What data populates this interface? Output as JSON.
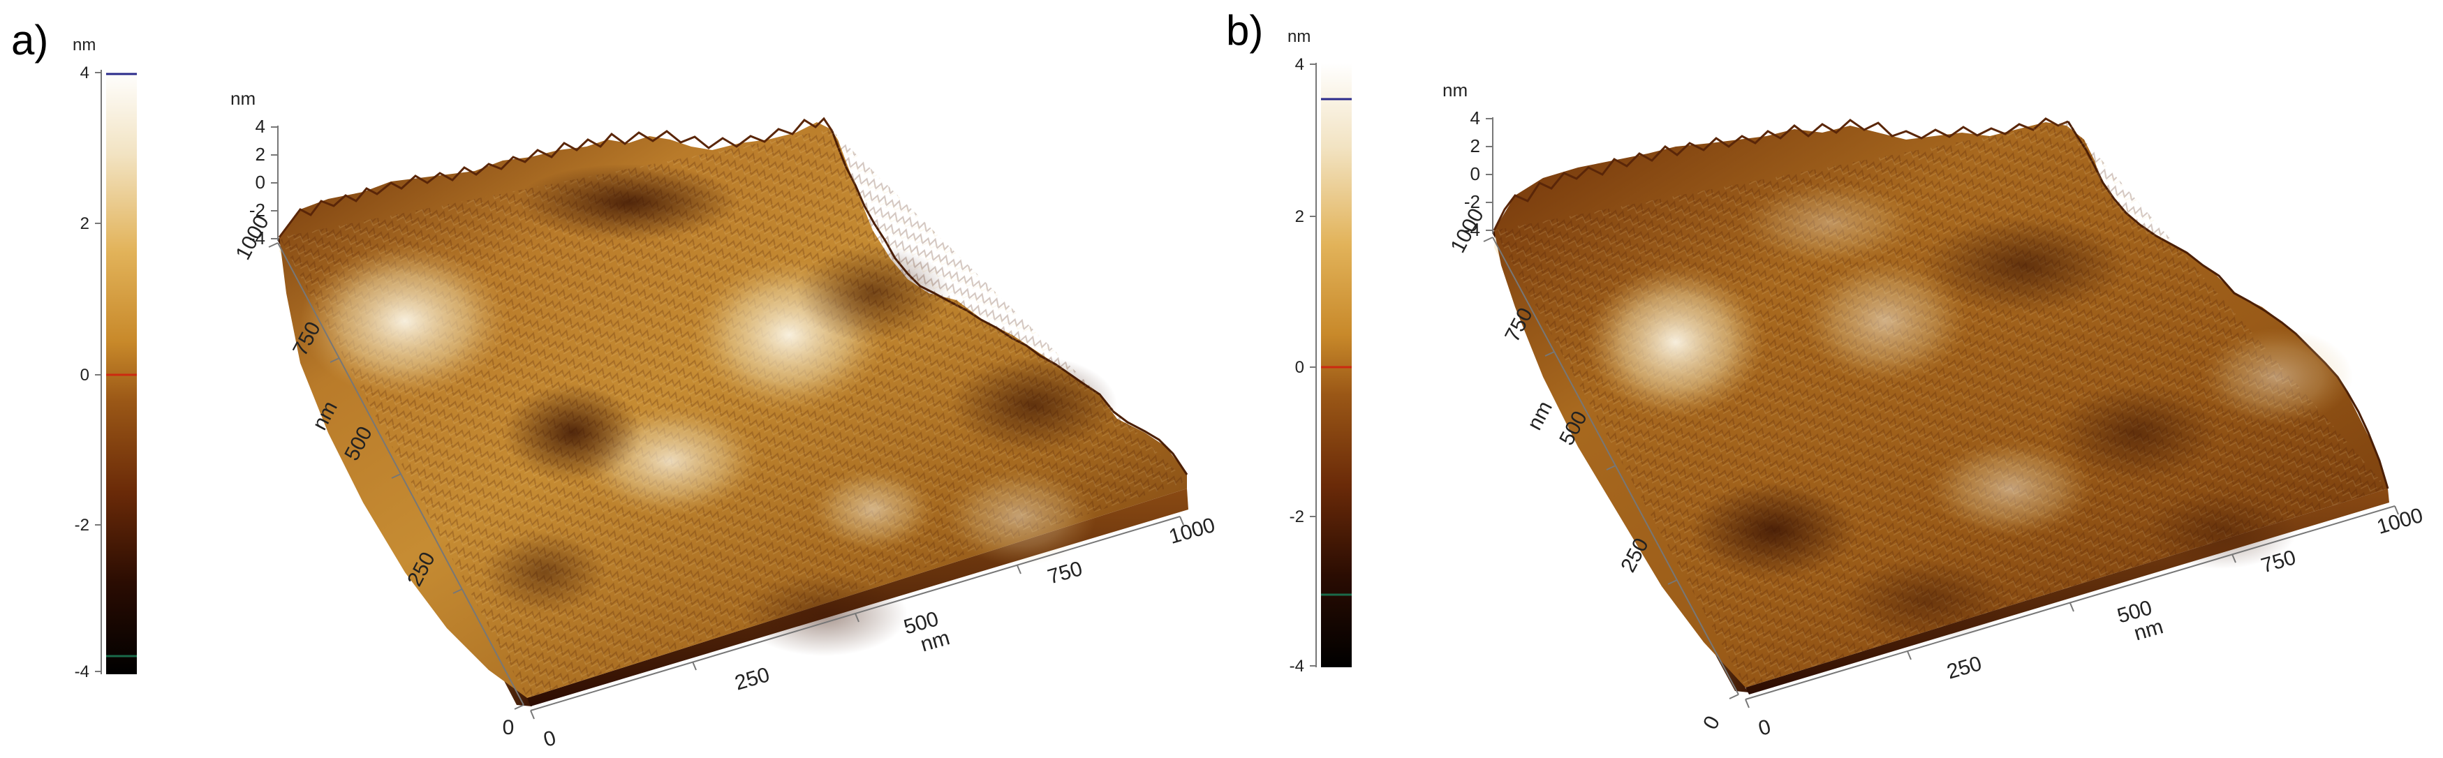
{
  "panels": [
    {
      "id": "a",
      "letter": "a)",
      "colorbar": {
        "unit": "nm",
        "ticks": [
          "4",
          "2",
          "0",
          "-2",
          "-4"
        ]
      },
      "z_axis": {
        "unit": "nm",
        "ticks": [
          "4",
          "2",
          "0",
          "-2",
          "-4"
        ]
      },
      "y_axis": {
        "unit": "nm",
        "ticks": [
          "0",
          "250",
          "500",
          "750",
          "1000"
        ]
      },
      "x_axis": {
        "unit": "nm",
        "ticks": [
          "0",
          "250",
          "500",
          "750",
          "1000"
        ]
      }
    },
    {
      "id": "b",
      "letter": "b)",
      "colorbar": {
        "unit": "nm",
        "ticks": [
          "4",
          "2",
          "0",
          "-2",
          "-4"
        ]
      },
      "z_axis": {
        "unit": "nm",
        "ticks": [
          "4",
          "2",
          "0",
          "-2",
          "-4"
        ]
      },
      "y_axis": {
        "unit": "nm",
        "ticks": [
          "0",
          "250",
          "500",
          "750",
          "1000"
        ]
      },
      "x_axis": {
        "unit": "nm",
        "ticks": [
          "0",
          "250",
          "500",
          "750",
          "1000"
        ]
      }
    }
  ],
  "colors": {
    "colorbar_gradient": [
      "#ffffff",
      "#f2e3c2",
      "#e2b35a",
      "#c8892a",
      "#9a5716",
      "#6a2a08",
      "#2a0c02",
      "#000000"
    ],
    "surface_dark": "#3a1404",
    "surface_mid": "#a86a22",
    "surface_light": "#f3e7cf"
  }
}
